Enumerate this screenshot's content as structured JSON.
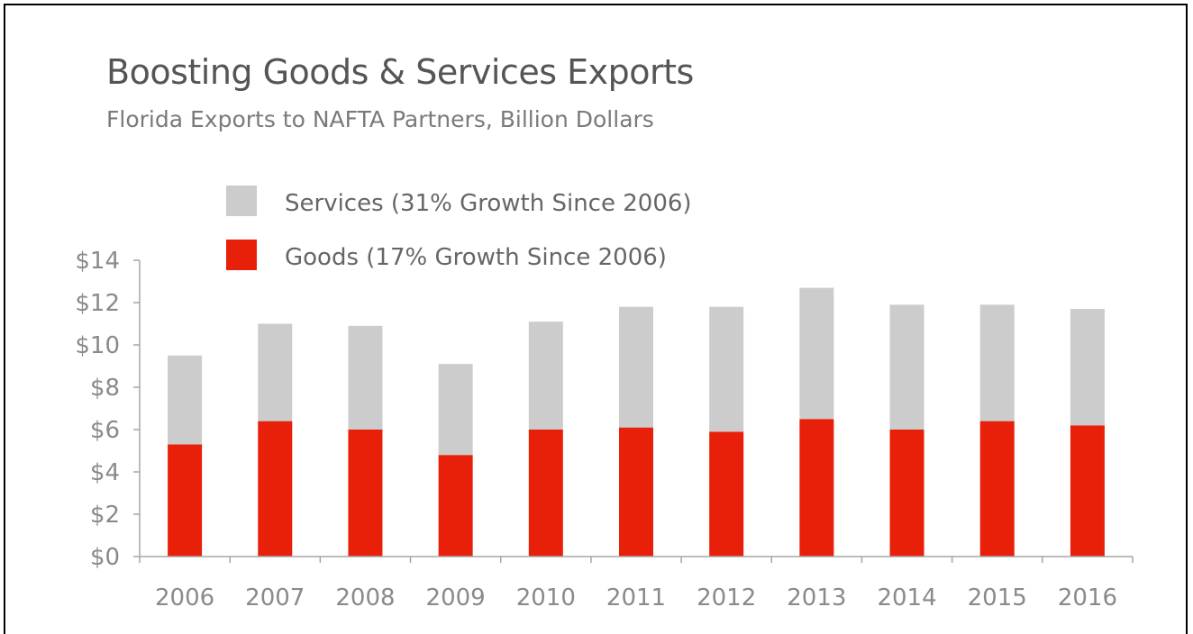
{
  "header": {
    "title": "Boosting Goods & Services Exports",
    "subtitle": "Florida Exports to NAFTA Partners, Billion Dollars"
  },
  "chart_data": {
    "type": "bar",
    "stacked": true,
    "title": "Boosting Goods & Services Exports",
    "subtitle": "Florida Exports to NAFTA Partners, Billion Dollars",
    "xlabel": "",
    "ylabel": "",
    "categories": [
      "2006",
      "2007",
      "2008",
      "2009",
      "2010",
      "2011",
      "2012",
      "2013",
      "2014",
      "2015",
      "2016"
    ],
    "series": [
      {
        "name": "Goods (17% Growth Since 2006)",
        "color": "#e8200a",
        "values": [
          5.3,
          6.4,
          6.0,
          4.8,
          6.0,
          6.1,
          5.9,
          6.5,
          6.0,
          6.4,
          6.2
        ]
      },
      {
        "name": "Services (31% Growth Since 2006)",
        "color": "#cccccc",
        "values": [
          4.2,
          4.6,
          4.9,
          4.3,
          5.1,
          5.7,
          5.9,
          6.2,
          5.9,
          5.5,
          5.5
        ]
      }
    ],
    "legend_order": [
      "Services (31% Growth Since 2006)",
      "Goods (17% Growth Since 2006)"
    ],
    "ylim": [
      0,
      14
    ],
    "yticks": [
      0,
      2,
      4,
      6,
      8,
      10,
      12,
      14
    ],
    "ytick_labels": [
      "$0",
      "$2",
      "$4",
      "$6",
      "$8",
      "$10",
      "$12",
      "$14"
    ],
    "grid": false,
    "legend_position": "top-left"
  }
}
